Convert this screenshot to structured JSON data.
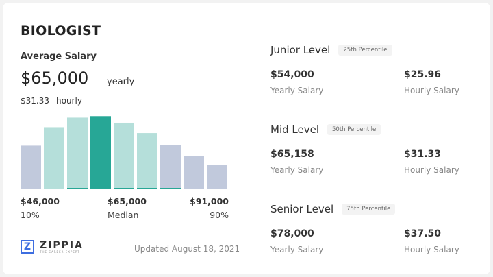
{
  "title": "BIOLOGIST",
  "average": {
    "label": "Average Salary",
    "yearly_value": "$65,000",
    "yearly_unit": "yearly",
    "hourly_value": "$31.33",
    "hourly_unit": "hourly"
  },
  "chart_data": {
    "type": "bar",
    "values": [
      59,
      84,
      97,
      99,
      90,
      76,
      60,
      45,
      33
    ],
    "highlight_index": 3,
    "colors": {
      "outer": "#c1c9dc",
      "inner": "#b5dfda",
      "median": "#27a796"
    },
    "labels": {
      "low_value": "$46,000",
      "low_pct": "10%",
      "mid_value": "$65,000",
      "mid_pct": "Median",
      "high_value": "$91,000",
      "high_pct": "90%"
    }
  },
  "logo": {
    "name": "ZIPPIA",
    "tagline": "THE CAREER EXPERT"
  },
  "updated": "Updated August 18, 2021",
  "levels": [
    {
      "name": "Junior Level",
      "pill": "25th Percentile",
      "yearly": "$54,000",
      "yearly_label": "Yearly Salary",
      "hourly": "$25.96",
      "hourly_label": "Hourly Salary"
    },
    {
      "name": "Mid Level",
      "pill": "50th Percentile",
      "yearly": "$65,158",
      "yearly_label": "Yearly Salary",
      "hourly": "$31.33",
      "hourly_label": "Hourly Salary"
    },
    {
      "name": "Senior Level",
      "pill": "75th Percentile",
      "yearly": "$78,000",
      "yearly_label": "Yearly Salary",
      "hourly": "$37.50",
      "hourly_label": "Hourly Salary"
    }
  ]
}
